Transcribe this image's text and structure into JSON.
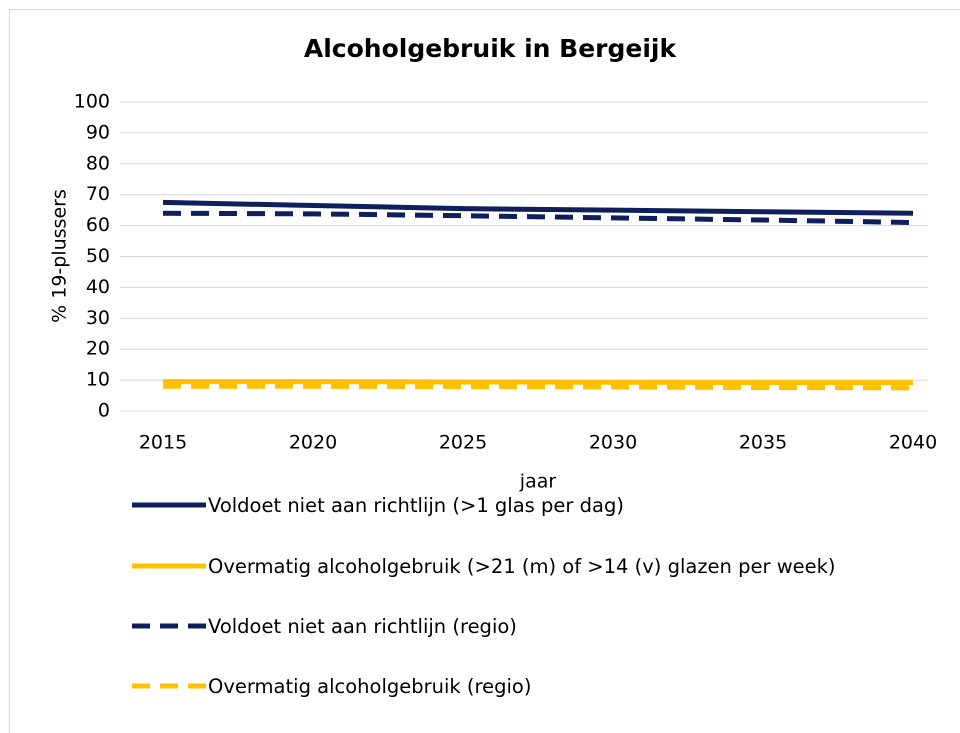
{
  "chart_data": {
    "type": "line",
    "title": "Alcoholgebruik in Bergeijk",
    "x_label": "jaar",
    "y_label": "% 19-plussers",
    "x": [
      2015,
      2020,
      2025,
      2030,
      2035,
      2040
    ],
    "xlim": [
      2015,
      2040
    ],
    "xticks": [
      2015,
      2020,
      2025,
      2030,
      2035,
      2040
    ],
    "ylim": [
      0,
      100
    ],
    "yticks": [
      0,
      10,
      20,
      30,
      40,
      50,
      60,
      70,
      80,
      90,
      100
    ],
    "grid": true,
    "legend": "bottom",
    "series": [
      {
        "name": "Voldoet niet aan richtlijn (>1 glas per dag)",
        "color": "#0e1f5b",
        "dash": false,
        "values": [
          67.5,
          66.5,
          65.5,
          65,
          64.5,
          64
        ]
      },
      {
        "name": "Overmatig alcoholgebruik (>21 (m) of >14 (v) glazen per week)",
        "color": "#ffc000",
        "dash": false,
        "values": [
          9.5,
          9.5,
          9.4,
          9.3,
          9.2,
          9.2
        ]
      },
      {
        "name": "Voldoet niet aan richtlijn (regio)",
        "color": "#0e1f5b",
        "dash": true,
        "values": [
          64,
          63.8,
          63.2,
          62.5,
          61.8,
          61
        ]
      },
      {
        "name": "Overmatig alcoholgebruik (regio)",
        "color": "#ffc000",
        "dash": true,
        "values": [
          8,
          8,
          7.9,
          7.8,
          7.6,
          7.5
        ]
      }
    ]
  }
}
